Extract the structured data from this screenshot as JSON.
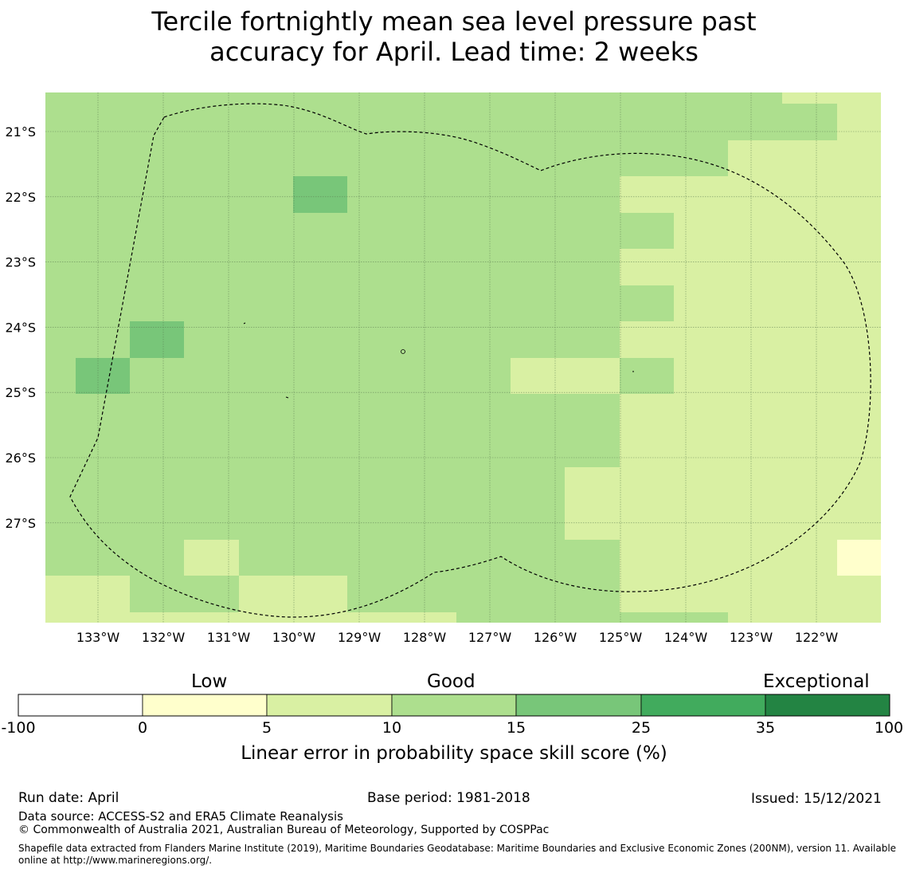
{
  "title": {
    "line1": "Tercile fortnightly mean sea level pressure past",
    "line2": "accuracy for April. Lead time: 2 weeks"
  },
  "map": {
    "lat_labels": [
      "21°S",
      "22°S",
      "23°S",
      "24°S",
      "25°S",
      "26°S",
      "27°S"
    ],
    "lon_labels": [
      "133°W",
      "132°W",
      "131°W",
      "130°W",
      "129°W",
      "128°W",
      "127°W",
      "126°W",
      "125°W",
      "124°W",
      "123°W",
      "122°W"
    ],
    "lat_values": [
      -21,
      -22,
      -23,
      -24,
      -25,
      -26,
      -27
    ],
    "lon_values": [
      -133,
      -132,
      -131,
      -130,
      -129,
      -128,
      -127,
      -126,
      -125,
      -124,
      -123,
      -122
    ],
    "extent": {
      "lon_min": -133.8,
      "lon_max": -121.0,
      "lat_min": -28.5,
      "lat_max": -20.4
    },
    "boundary_style": "dashed",
    "grid": true,
    "ocean_colors": {
      "base": "#addf8e",
      "pale": "#d9f0a3",
      "mid": "#78c679",
      "yellow": "#ffffcc"
    }
  },
  "colorbar": {
    "categories": [
      "Low",
      "Good",
      "Exceptional"
    ],
    "ticks": [
      "-100",
      "0",
      "5",
      "10",
      "15",
      "25",
      "35",
      "100"
    ],
    "colors": [
      "#ffffff",
      "#ffffcc",
      "#d9f0a3",
      "#addf8e",
      "#78c679",
      "#41ab5d",
      "#238443"
    ],
    "label": "Linear error in probability space skill score (%)"
  },
  "footer": {
    "run_date": "Run date: April",
    "base_period": "Base period: 1981-2018",
    "issued": "Issued: 15/12/2021",
    "data_source": "Data source: ACCESS-S2 and ERA5 Climate Reanalysis",
    "copyright": "© Commonwealth of Australia 2021, Australian Bureau of Meteorology, Supported by COSPPac",
    "shapefile": "Shapefile data extracted from Flanders Marine Institute (2019), Maritime Boundaries Geodatabase: Maritime Boundaries and Exclusive Economic Zones (200NM), version 11. Available online at http://www.marineregions.org/."
  }
}
